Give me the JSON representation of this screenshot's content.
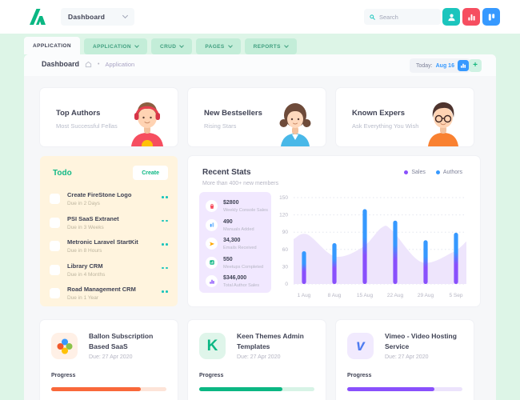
{
  "theme": {
    "background_mint": "#DDF5E7",
    "topbar_bg": "#FFFFFF",
    "panel_bg": "#F6F7F9",
    "card_bg": "#FFFFFF",
    "accent_green": "#0BB783",
    "accent_teal": "#1BC5BD",
    "accent_red": "#F64E60",
    "accent_blue": "#3699FF",
    "accent_purple": "#8950FC",
    "text_dark": "#3F4254",
    "text_muted": "#B5B5C3",
    "todo_bg": "#FFF4DE",
    "tab_bg": "#C3EDD8",
    "tab_text": "#3F9F7F",
    "stats_panel_bg": "#F1E8FF"
  },
  "topbar": {
    "brand_menu_label": "Dashboard",
    "search_placeholder": "Search",
    "actions": [
      {
        "icon": "user-icon",
        "color": "#1BC5BD"
      },
      {
        "icon": "bar-chart-icon",
        "color": "#F64E60"
      },
      {
        "icon": "columns-icon",
        "color": "#3699FF"
      }
    ]
  },
  "tabs": [
    {
      "label": "APPLICATION",
      "active": true
    },
    {
      "label": "APPLICATION",
      "active": false
    },
    {
      "label": "CRUD",
      "active": false
    },
    {
      "label": "PAGES",
      "active": false
    },
    {
      "label": "REPORTS",
      "active": false
    }
  ],
  "breadcrumb": {
    "title": "Dashboard",
    "section": "Application",
    "today_label": "Today:",
    "today_value": "Aug 16"
  },
  "feature_cards": [
    {
      "title": "Top Authors",
      "subtitle": "Most Successful Fellas",
      "avatar": "boy-headphones-avatar"
    },
    {
      "title": "New Bestsellers",
      "subtitle": "Rising Stars",
      "avatar": "girl-avatar"
    },
    {
      "title": "Known Expers",
      "subtitle": "Ask Everything You Wish",
      "avatar": "man-glasses-avatar"
    }
  ],
  "todo": {
    "title": "Todo",
    "create_label": "Create",
    "items": [
      {
        "title": "Create FireStone Logo",
        "due": "Due in 2 Days"
      },
      {
        "title": "PSI SaaS Extranet",
        "due": "Due in 3 Weeks"
      },
      {
        "title": "Metronic Laravel StartKit",
        "due": "Due in 8 Hours"
      },
      {
        "title": "Library CRM",
        "due": "Due in 4 Months"
      },
      {
        "title": "Road Management CRM",
        "due": "Due in 1 Year"
      }
    ]
  },
  "recent_stats": {
    "title": "Recent Stats",
    "subtitle": "More than 400+ new members",
    "legend": [
      {
        "label": "Sales",
        "color": "#8950FC"
      },
      {
        "label": "Authors",
        "color": "#3699FF"
      }
    ],
    "mini_stats": [
      {
        "value": "$2800",
        "label": "Weekly Console Sales",
        "icon": "basket-icon",
        "color": "#F64E60"
      },
      {
        "value": "490",
        "label": "Manuals Added",
        "icon": "bars-icon",
        "color": "#3699FF"
      },
      {
        "value": "34,300",
        "label": "Emails Received",
        "icon": "send-icon",
        "color": "#FFA800"
      },
      {
        "value": "550",
        "label": "Meetups Completed",
        "icon": "calendar-chart-icon",
        "color": "#0BB783"
      },
      {
        "value": "$346,000",
        "label": "Total Author Sales",
        "icon": "chart-columns-icon",
        "color": "#8950FC"
      }
    ]
  },
  "chart_data": {
    "type": "bar",
    "subtype": "stacked bars over smoothed area background",
    "categories": [
      "1 Aug",
      "8 Aug",
      "15 Aug",
      "22 Aug",
      "29 Aug",
      "5 Sep"
    ],
    "series": [
      {
        "name": "Sales",
        "type": "bar-bottom-segment",
        "color": "#8950FC",
        "values": [
          29,
          37,
          64,
          53,
          38,
          44
        ]
      },
      {
        "name": "Authors",
        "type": "bar-top-segment",
        "color": "#3699FF",
        "values": [
          28,
          34,
          66,
          57,
          38,
          45
        ]
      }
    ],
    "bar_totals": [
      57,
      71,
      130,
      110,
      76,
      89
    ],
    "area": {
      "name": "trend-background",
      "color": "#EEE5FC",
      "profile": [
        {
          "x": 0.0,
          "v": 78
        },
        {
          "x": 0.08,
          "v": 86
        },
        {
          "x": 0.24,
          "v": 48
        },
        {
          "x": 0.4,
          "v": 64
        },
        {
          "x": 0.51,
          "v": 98
        },
        {
          "x": 0.57,
          "v": 93
        },
        {
          "x": 0.74,
          "v": 38
        },
        {
          "x": 0.92,
          "v": 55
        },
        {
          "x": 1.0,
          "v": 74
        }
      ]
    },
    "ylim": [
      0,
      150
    ],
    "yticks": [
      0,
      30,
      60,
      90,
      120,
      150
    ],
    "grid": "horizontal dotted",
    "legend_position": "top-right",
    "tick_color": "#B5B5C3"
  },
  "projects": [
    {
      "title": "Ballon Subscription Based SaaS",
      "due": "Due: 27 Apr 2020",
      "progress_label": "Progress",
      "progress_pct": 78,
      "bar_color": "#F9683A",
      "track_color": "#FDE4D8",
      "icon": "clover-icon",
      "icon_bg": "#FFF0E6",
      "icon_fg": "#F1592A"
    },
    {
      "title": "Keen Themes Admin Templates",
      "due": "Due: 27 Apr 2020",
      "progress_label": "Progress",
      "progress_pct": 72,
      "bar_color": "#0BB783",
      "track_color": "#D7F3E6",
      "icon": "keen-k-icon",
      "icon_bg": "#DFF5EA",
      "icon_fg": "#0BB783"
    },
    {
      "title": "Vimeo - Video Hosting Service",
      "due": "Due: 27 Apr 2020",
      "progress_label": "Progress",
      "progress_pct": 76,
      "bar_color": "#8950FC",
      "track_color": "#ECE3FC",
      "icon": "vimeo-icon",
      "icon_bg": "#F1EAFE",
      "icon_fg": "#4E7CF0"
    }
  ]
}
